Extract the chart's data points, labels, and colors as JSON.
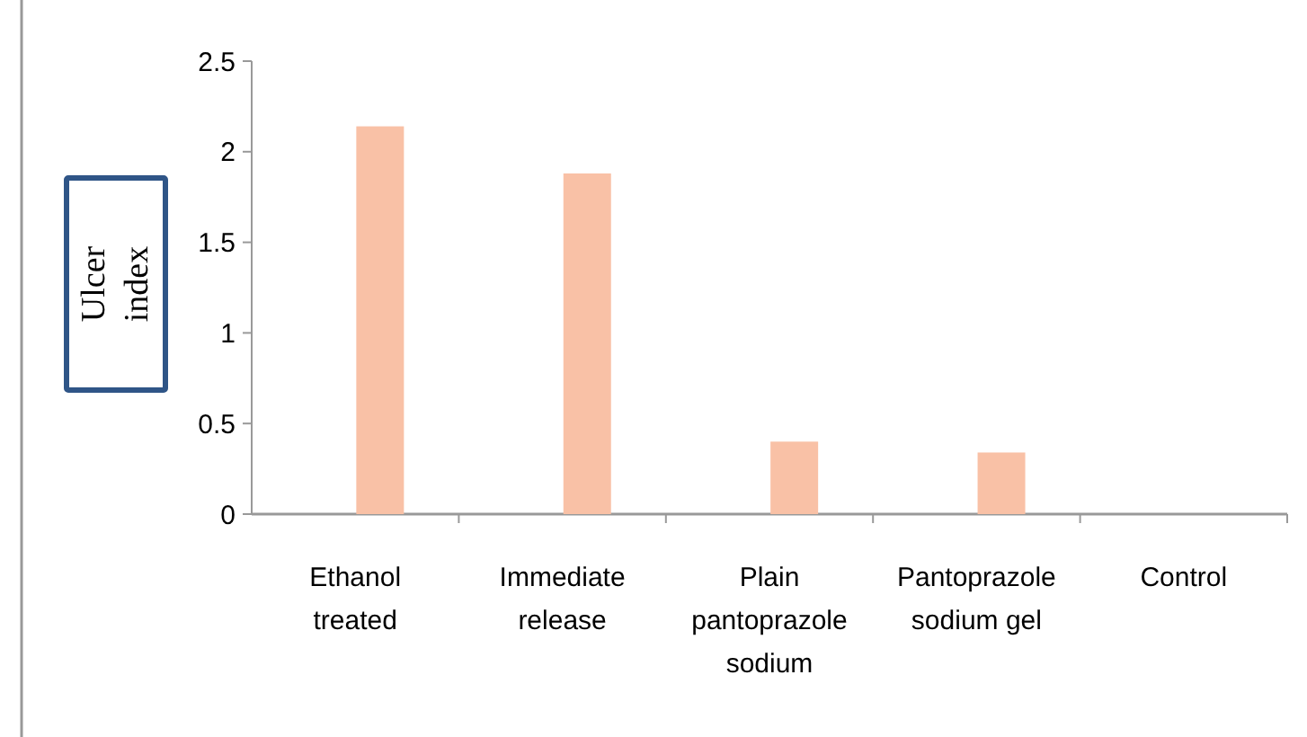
{
  "chart_data": {
    "type": "bar",
    "ylabel": "Ulcer index",
    "categories": [
      "Ethanol treated",
      "Immediate release",
      "Plain pantoprazole sodium",
      "Pantoprazole sodium gel",
      "Control"
    ],
    "values": [
      2.14,
      1.88,
      0.4,
      0.34,
      0
    ],
    "color": "#f9c1a6",
    "ylim": [
      0,
      2.5
    ],
    "yticks": [
      0,
      0.5,
      1,
      1.5,
      2,
      2.5
    ],
    "grid": false
  }
}
